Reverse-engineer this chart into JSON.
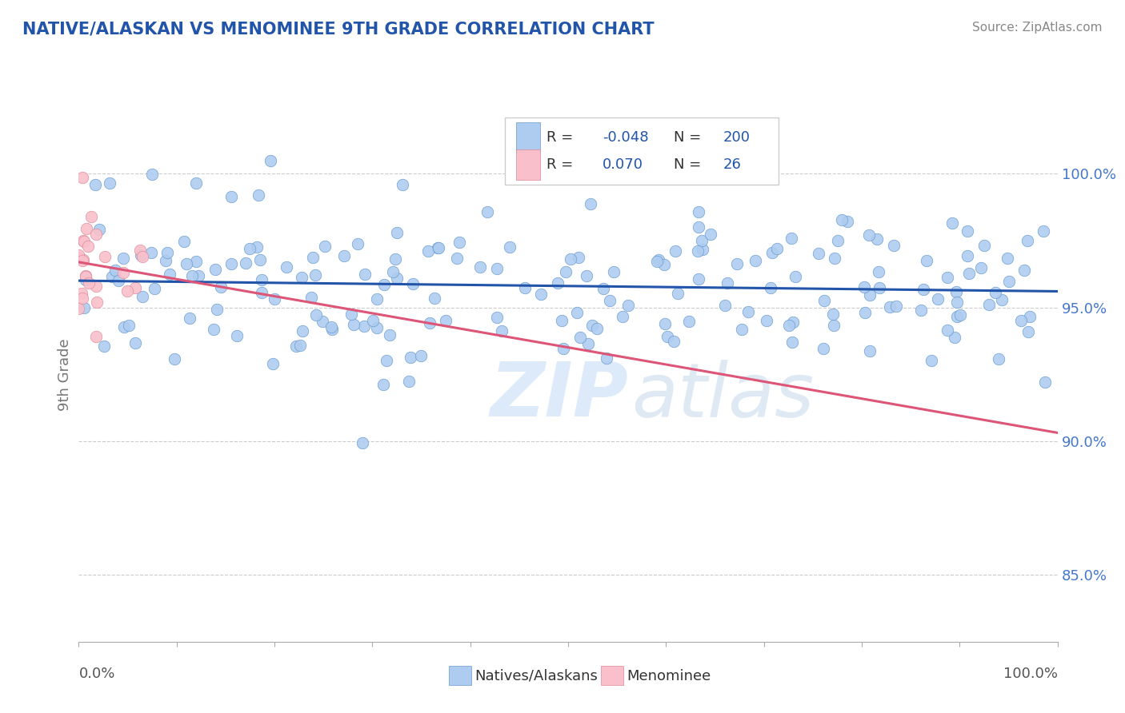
{
  "title": "NATIVE/ALASKAN VS MENOMINEE 9TH GRADE CORRELATION CHART",
  "source": "Source: ZipAtlas.com",
  "ylabel": "9th Grade",
  "ytick_labels": [
    "85.0%",
    "90.0%",
    "95.0%",
    "100.0%"
  ],
  "ytick_values": [
    0.85,
    0.9,
    0.95,
    1.0
  ],
  "xlim": [
    0.0,
    1.0
  ],
  "ylim": [
    0.825,
    1.025
  ],
  "blue_R": -0.048,
  "blue_N": 200,
  "pink_R": 0.07,
  "pink_N": 26,
  "blue_color": "#aeccf0",
  "blue_edge_color": "#6699cc",
  "blue_line_color": "#2255aa",
  "pink_color": "#f9c0cb",
  "pink_edge_color": "#dd8899",
  "pink_line_color": "#dd5577",
  "title_color": "#2255aa",
  "legend_R_color": "#2255aa",
  "tick_color": "#4477cc",
  "seed": 42
}
